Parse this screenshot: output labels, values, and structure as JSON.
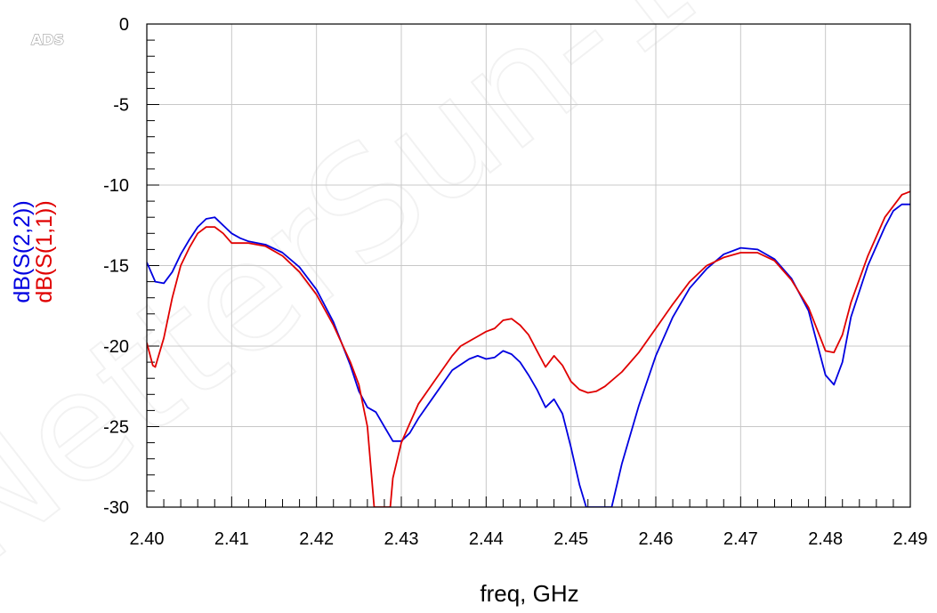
{
  "chart_data": {
    "type": "line",
    "corner_label": "ADS",
    "watermark": "NetterSun-1",
    "xlabel": "freq, GHz",
    "ylabels": [
      "dB(S(2,2))",
      "dB(S(1,1))"
    ],
    "xlim": [
      2.4,
      2.49
    ],
    "ylim": [
      -30,
      0
    ],
    "grid": true,
    "x_ticks": [
      "2.40",
      "2.41",
      "2.42",
      "2.43",
      "2.44",
      "2.45",
      "2.46",
      "2.47",
      "2.48",
      "2.49"
    ],
    "y_ticks": [
      "0",
      "-5",
      "-10",
      "-15",
      "-20",
      "-25",
      "-30"
    ],
    "series": [
      {
        "name": "dB(S(2,2))",
        "color": "#0000e0",
        "points": [
          [
            2.4,
            -14.8
          ],
          [
            2.401,
            -16.0
          ],
          [
            2.402,
            -16.1
          ],
          [
            2.403,
            -15.4
          ],
          [
            2.404,
            -14.3
          ],
          [
            2.405,
            -13.4
          ],
          [
            2.406,
            -12.6
          ],
          [
            2.407,
            -12.1
          ],
          [
            2.408,
            -12.0
          ],
          [
            2.409,
            -12.5
          ],
          [
            2.41,
            -13.0
          ],
          [
            2.411,
            -13.3
          ],
          [
            2.412,
            -13.5
          ],
          [
            2.414,
            -13.7
          ],
          [
            2.416,
            -14.2
          ],
          [
            2.418,
            -15.1
          ],
          [
            2.42,
            -16.5
          ],
          [
            2.422,
            -18.5
          ],
          [
            2.424,
            -21.2
          ],
          [
            2.425,
            -22.8
          ],
          [
            2.426,
            -23.8
          ],
          [
            2.427,
            -24.1
          ],
          [
            2.428,
            -25.0
          ],
          [
            2.429,
            -25.9
          ],
          [
            2.43,
            -25.9
          ],
          [
            2.431,
            -25.4
          ],
          [
            2.432,
            -24.5
          ],
          [
            2.434,
            -23.0
          ],
          [
            2.436,
            -21.5
          ],
          [
            2.438,
            -20.8
          ],
          [
            2.439,
            -20.6
          ],
          [
            2.44,
            -20.8
          ],
          [
            2.441,
            -20.7
          ],
          [
            2.442,
            -20.3
          ],
          [
            2.443,
            -20.5
          ],
          [
            2.444,
            -21.0
          ],
          [
            2.445,
            -21.8
          ],
          [
            2.446,
            -22.7
          ],
          [
            2.447,
            -23.8
          ],
          [
            2.448,
            -23.3
          ],
          [
            2.449,
            -24.2
          ],
          [
            2.45,
            -26.3
          ],
          [
            2.451,
            -28.6
          ],
          [
            2.4518,
            -30.0
          ],
          [
            2.4548,
            -30.0
          ],
          [
            2.456,
            -27.3
          ],
          [
            2.458,
            -23.7
          ],
          [
            2.46,
            -20.6
          ],
          [
            2.462,
            -18.2
          ],
          [
            2.464,
            -16.4
          ],
          [
            2.466,
            -15.2
          ],
          [
            2.468,
            -14.3
          ],
          [
            2.47,
            -13.9
          ],
          [
            2.472,
            -14.0
          ],
          [
            2.474,
            -14.6
          ],
          [
            2.476,
            -15.8
          ],
          [
            2.478,
            -17.8
          ],
          [
            2.48,
            -21.8
          ],
          [
            2.481,
            -22.4
          ],
          [
            2.482,
            -21.0
          ],
          [
            2.483,
            -18.2
          ],
          [
            2.485,
            -15.0
          ],
          [
            2.487,
            -12.6
          ],
          [
            2.488,
            -11.6
          ],
          [
            2.489,
            -11.2
          ],
          [
            2.49,
            -11.2
          ]
        ]
      },
      {
        "name": "dB(S(1,1))",
        "color": "#e00000",
        "points": [
          [
            2.4,
            -19.8
          ],
          [
            2.4007,
            -21.2
          ],
          [
            2.401,
            -21.3
          ],
          [
            2.402,
            -19.5
          ],
          [
            2.403,
            -17.0
          ],
          [
            2.404,
            -15.0
          ],
          [
            2.405,
            -13.9
          ],
          [
            2.406,
            -13.0
          ],
          [
            2.407,
            -12.6
          ],
          [
            2.408,
            -12.6
          ],
          [
            2.409,
            -13.0
          ],
          [
            2.41,
            -13.6
          ],
          [
            2.412,
            -13.6
          ],
          [
            2.414,
            -13.8
          ],
          [
            2.416,
            -14.4
          ],
          [
            2.418,
            -15.4
          ],
          [
            2.42,
            -16.8
          ],
          [
            2.422,
            -18.7
          ],
          [
            2.424,
            -21.0
          ],
          [
            2.425,
            -22.4
          ],
          [
            2.426,
            -25.0
          ],
          [
            2.4268,
            -30.0
          ],
          [
            2.4287,
            -30.0
          ],
          [
            2.429,
            -28.2
          ],
          [
            2.43,
            -26.0
          ],
          [
            2.431,
            -24.8
          ],
          [
            2.432,
            -23.6
          ],
          [
            2.434,
            -22.1
          ],
          [
            2.436,
            -20.6
          ],
          [
            2.437,
            -20.0
          ],
          [
            2.439,
            -19.4
          ],
          [
            2.44,
            -19.1
          ],
          [
            2.441,
            -18.9
          ],
          [
            2.442,
            -18.4
          ],
          [
            2.443,
            -18.3
          ],
          [
            2.444,
            -18.7
          ],
          [
            2.445,
            -19.3
          ],
          [
            2.446,
            -20.3
          ],
          [
            2.447,
            -21.3
          ],
          [
            2.448,
            -20.6
          ],
          [
            2.449,
            -21.2
          ],
          [
            2.45,
            -22.2
          ],
          [
            2.451,
            -22.7
          ],
          [
            2.452,
            -22.9
          ],
          [
            2.453,
            -22.8
          ],
          [
            2.454,
            -22.5
          ],
          [
            2.456,
            -21.6
          ],
          [
            2.458,
            -20.4
          ],
          [
            2.46,
            -18.9
          ],
          [
            2.462,
            -17.4
          ],
          [
            2.464,
            -16.0
          ],
          [
            2.466,
            -15.0
          ],
          [
            2.468,
            -14.5
          ],
          [
            2.47,
            -14.2
          ],
          [
            2.472,
            -14.2
          ],
          [
            2.474,
            -14.7
          ],
          [
            2.476,
            -15.9
          ],
          [
            2.478,
            -17.6
          ],
          [
            2.48,
            -20.3
          ],
          [
            2.481,
            -20.4
          ],
          [
            2.482,
            -19.3
          ],
          [
            2.483,
            -17.3
          ],
          [
            2.485,
            -14.4
          ],
          [
            2.487,
            -12.0
          ],
          [
            2.489,
            -10.6
          ],
          [
            2.49,
            -10.4
          ]
        ]
      }
    ]
  }
}
